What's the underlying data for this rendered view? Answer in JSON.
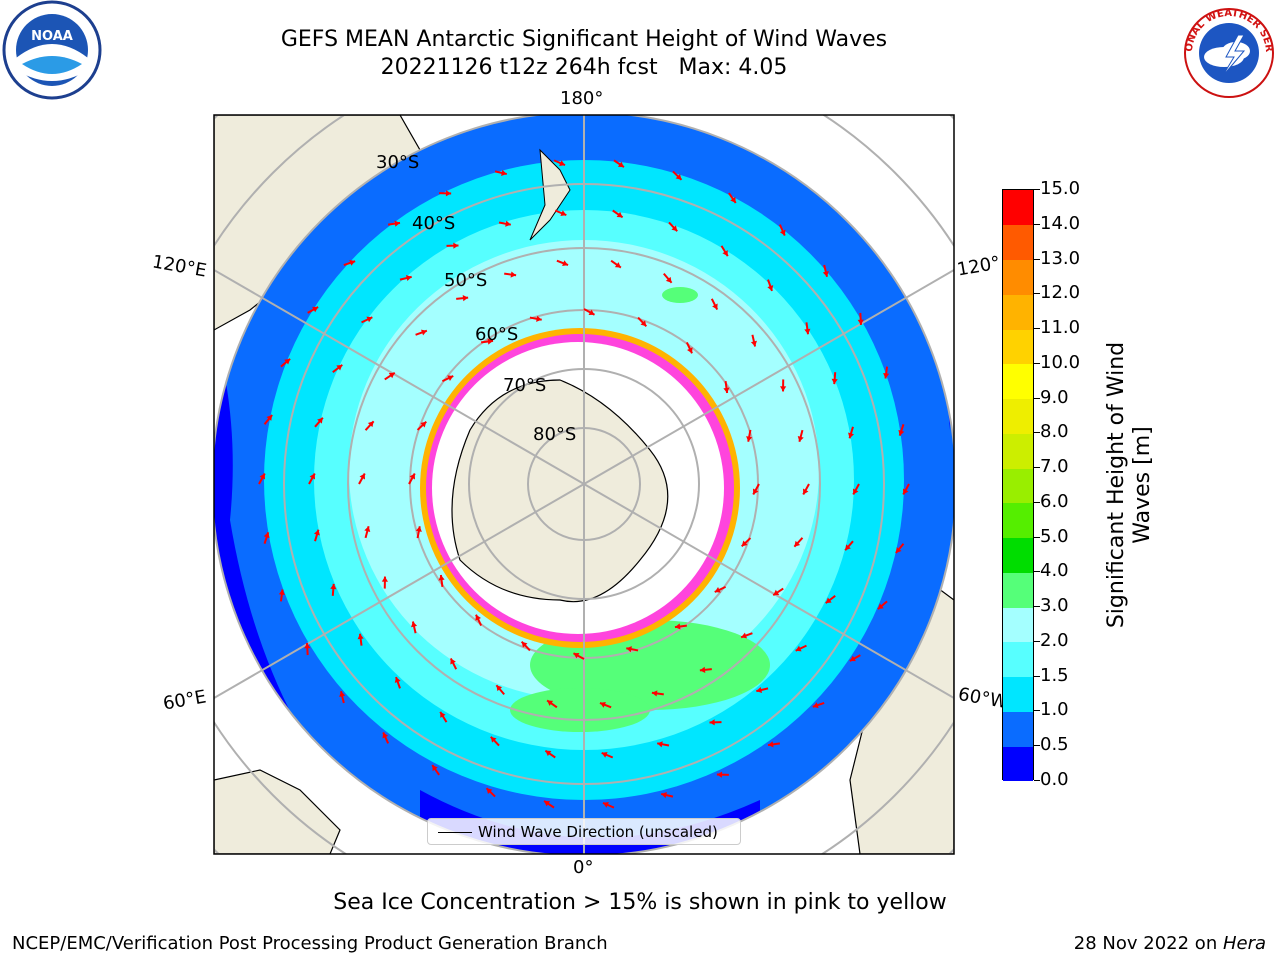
{
  "title": {
    "line1": "GEFS MEAN Antarctic Significant Height of Wind Waves",
    "line2": "20221126 t12z 264h fcst   Max: 4.05"
  },
  "logos": {
    "left": "noaa-logo",
    "right": "national-weather-service-logo",
    "left_text": "NOAA",
    "right_text": "NATIONAL WEATHER SERVICE"
  },
  "map": {
    "projection": "south-polar-stereographic",
    "lat_labels": [
      "30°S",
      "40°S",
      "50°S",
      "60°S",
      "70°S",
      "80°S"
    ],
    "lon_labels": {
      "top": "180°",
      "bottom": "0°",
      "upper_left": "120°E",
      "lower_left": "60°E",
      "upper_right": "120°",
      "lower_right": "60°W"
    },
    "legend_label": "Wind Wave Direction (unscaled)",
    "arrow_color": "#ff0000",
    "land_color": "#efecdc",
    "ice_color": "#ffffff"
  },
  "colorbar": {
    "label": "Significant Height of Wind Waves [m]",
    "ticks": [
      "0.0",
      "0.5",
      "1.0",
      "1.5",
      "2.0",
      "3.0",
      "4.0",
      "5.0",
      "6.0",
      "7.0",
      "8.0",
      "9.0",
      "10.0",
      "11.0",
      "12.0",
      "13.0",
      "14.0",
      "15.0"
    ],
    "colors": [
      "#0000ff",
      "#0a6cff",
      "#00e6ff",
      "#57ffff",
      "#a4ffff",
      "#55ff79",
      "#00dd00",
      "#55ee00",
      "#99ee00",
      "#ccee00",
      "#eeee00",
      "#ffff00",
      "#ffd200",
      "#ffb300",
      "#ff8c00",
      "#ff5a00",
      "#ff0000"
    ]
  },
  "note": "Sea Ice Concentration > 15% is shown in pink to yellow",
  "footer": {
    "left": "NCEP/EMC/Verification Post Processing Product Generation Branch",
    "right_date": "28 Nov 2022 on ",
    "right_machine": "Hera"
  }
}
